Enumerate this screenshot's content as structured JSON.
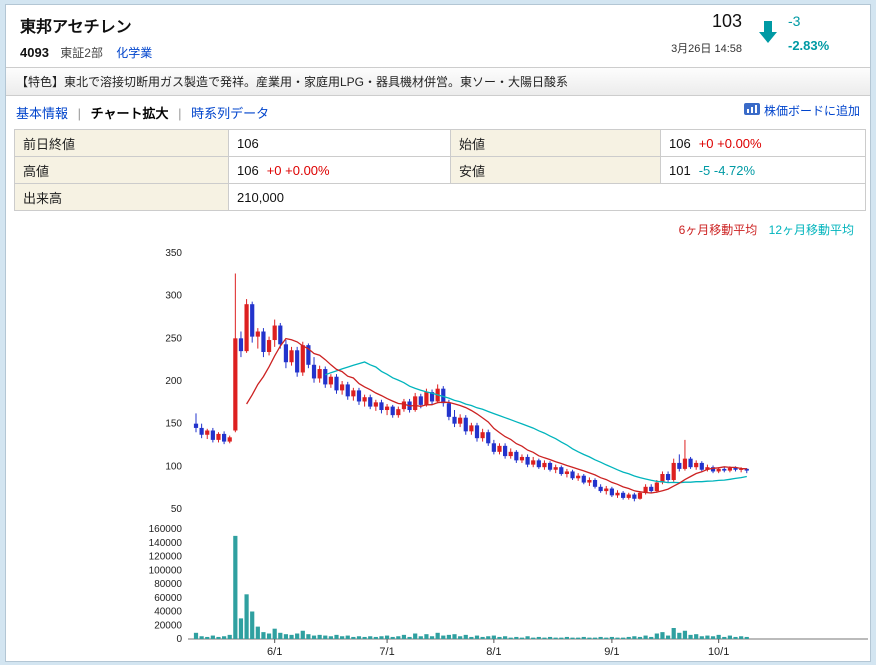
{
  "header": {
    "name": "東邦アセチレン",
    "code": "4093",
    "market": "東証2部",
    "industry": "化学業",
    "price": "103",
    "datetime": "3月26日 14:58",
    "change": "-3",
    "change_pct": "-2.83%"
  },
  "feature_text": "【特色】東北で溶接切断用ガス製造で発祥。産業用・家庭用LPG・器具機材併営。東ソー・大陽日酸系",
  "nav": {
    "basic": "基本情報",
    "chart": "チャート拡大",
    "timeseries": "時系列データ",
    "separator": "|",
    "add_board": "株価ボードに追加"
  },
  "quote": {
    "prev_close_label": "前日終値",
    "prev_close": "106",
    "open_label": "始値",
    "open": "106",
    "open_change": "+0 +0.00%",
    "high_label": "高値",
    "high": "106",
    "high_change": "+0 +0.00%",
    "low_label": "安値",
    "low": "101",
    "low_change": "-5 -4.72%",
    "volume_label": "出来高",
    "volume": "210,000"
  },
  "colors": {
    "up_red": "#dd0000",
    "down_teal": "#009aa4",
    "link_blue": "#0044cc"
  },
  "chart_data": {
    "type": "candlestick",
    "series_format": "[open, high, low, close, volume]",
    "legend": [
      {
        "label": "6ヶ月移動平均",
        "color": "#cc2222"
      },
      {
        "label": "12ヶ月移動平均",
        "color": "#00b4bc"
      }
    ],
    "price_axis": {
      "min": 50,
      "max": 350,
      "ticks": [
        350,
        300,
        250,
        200,
        150,
        100,
        50
      ]
    },
    "volume_axis": {
      "min": 0,
      "max": 160000,
      "ticks": [
        160000,
        140000,
        120000,
        100000,
        80000,
        60000,
        40000,
        20000,
        0
      ]
    },
    "x_ticks": [
      {
        "label": "6/1",
        "index": 14
      },
      {
        "label": "7/1",
        "index": 34
      },
      {
        "label": "8/1",
        "index": 53
      },
      {
        "label": "9/1",
        "index": 74
      },
      {
        "label": "10/1",
        "index": 93
      }
    ],
    "ma_short_window": 10,
    "ma_long_window": 24,
    "colors": {
      "up": "#dd2020",
      "down": "#2233cc",
      "volume": "#2fa0a0"
    },
    "candles": [
      [
        150,
        162,
        140,
        145,
        9000
      ],
      [
        145,
        150,
        133,
        137,
        4000
      ],
      [
        137,
        144,
        132,
        142,
        3000
      ],
      [
        142,
        145,
        128,
        131,
        5000
      ],
      [
        131,
        140,
        128,
        138,
        3000
      ],
      [
        138,
        141,
        126,
        129,
        4000
      ],
      [
        129,
        136,
        127,
        134,
        6000
      ],
      [
        142,
        326,
        140,
        250,
        150000
      ],
      [
        250,
        258,
        228,
        235,
        30000
      ],
      [
        235,
        296,
        233,
        290,
        65000
      ],
      [
        290,
        293,
        245,
        252,
        40000
      ],
      [
        252,
        262,
        238,
        258,
        18000
      ],
      [
        258,
        262,
        228,
        234,
        10000
      ],
      [
        234,
        252,
        230,
        248,
        8000
      ],
      [
        248,
        272,
        240,
        265,
        15000
      ],
      [
        265,
        268,
        238,
        243,
        9000
      ],
      [
        243,
        248,
        215,
        222,
        7000
      ],
      [
        222,
        240,
        218,
        236,
        6000
      ],
      [
        236,
        240,
        205,
        210,
        8000
      ],
      [
        210,
        246,
        206,
        242,
        12000
      ],
      [
        242,
        244,
        215,
        219,
        7000
      ],
      [
        219,
        228,
        198,
        203,
        5000
      ],
      [
        203,
        218,
        198,
        214,
        6000
      ],
      [
        214,
        217,
        192,
        196,
        5000
      ],
      [
        196,
        208,
        192,
        205,
        4000
      ],
      [
        205,
        208,
        185,
        189,
        6000
      ],
      [
        189,
        200,
        184,
        196,
        4000
      ],
      [
        196,
        199,
        178,
        182,
        5000
      ],
      [
        182,
        192,
        177,
        189,
        3000
      ],
      [
        189,
        192,
        172,
        176,
        4000
      ],
      [
        176,
        184,
        170,
        181,
        3000
      ],
      [
        181,
        184,
        167,
        170,
        4000
      ],
      [
        170,
        178,
        165,
        175,
        3000
      ],
      [
        175,
        178,
        162,
        166,
        4000
      ],
      [
        166,
        173,
        160,
        170,
        5000
      ],
      [
        170,
        172,
        157,
        160,
        3000
      ],
      [
        160,
        170,
        157,
        167,
        4000
      ],
      [
        167,
        179,
        164,
        176,
        6000
      ],
      [
        176,
        179,
        163,
        166,
        3000
      ],
      [
        166,
        186,
        164,
        182,
        8000
      ],
      [
        182,
        185,
        168,
        172,
        4000
      ],
      [
        172,
        191,
        170,
        187,
        7000
      ],
      [
        187,
        190,
        172,
        176,
        4000
      ],
      [
        176,
        196,
        174,
        191,
        9000
      ],
      [
        191,
        194,
        170,
        174,
        5000
      ],
      [
        174,
        178,
        154,
        158,
        6000
      ],
      [
        158,
        166,
        146,
        150,
        7000
      ],
      [
        150,
        161,
        146,
        157,
        4000
      ],
      [
        157,
        160,
        137,
        141,
        6000
      ],
      [
        141,
        151,
        137,
        148,
        3000
      ],
      [
        148,
        151,
        129,
        133,
        5000
      ],
      [
        133,
        144,
        129,
        140,
        3000
      ],
      [
        140,
        143,
        124,
        127,
        4000
      ],
      [
        127,
        131,
        114,
        117,
        5000
      ],
      [
        117,
        127,
        114,
        124,
        3000
      ],
      [
        124,
        127,
        109,
        112,
        4000
      ],
      [
        112,
        121,
        109,
        117,
        2000
      ],
      [
        117,
        119,
        104,
        107,
        3000
      ],
      [
        107,
        114,
        104,
        111,
        2000
      ],
      [
        111,
        114,
        99,
        102,
        4000
      ],
      [
        102,
        111,
        99,
        107,
        2000
      ],
      [
        107,
        109,
        97,
        99,
        3000
      ],
      [
        99,
        107,
        96,
        104,
        2000
      ],
      [
        104,
        106,
        94,
        96,
        3000
      ],
      [
        96,
        102,
        92,
        99,
        2000
      ],
      [
        99,
        101,
        89,
        91,
        2000
      ],
      [
        91,
        97,
        87,
        94,
        3000
      ],
      [
        94,
        96,
        84,
        86,
        2000
      ],
      [
        86,
        92,
        83,
        89,
        2000
      ],
      [
        89,
        91,
        79,
        81,
        3000
      ],
      [
        81,
        87,
        77,
        84,
        2000
      ],
      [
        84,
        86,
        74,
        76,
        2000
      ],
      [
        76,
        79,
        69,
        71,
        3000
      ],
      [
        71,
        77,
        67,
        74,
        2000
      ],
      [
        74,
        76,
        64,
        66,
        3000
      ],
      [
        66,
        72,
        63,
        69,
        2000
      ],
      [
        69,
        71,
        61,
        63,
        2000
      ],
      [
        63,
        69,
        61,
        67,
        3000
      ],
      [
        67,
        69,
        59,
        62,
        4000
      ],
      [
        62,
        71,
        61,
        69,
        3000
      ],
      [
        69,
        79,
        67,
        76,
        5000
      ],
      [
        76,
        79,
        69,
        71,
        3000
      ],
      [
        71,
        84,
        69,
        81,
        8000
      ],
      [
        81,
        94,
        79,
        91,
        10000
      ],
      [
        91,
        94,
        81,
        84,
        5000
      ],
      [
        84,
        109,
        82,
        104,
        16000
      ],
      [
        104,
        114,
        94,
        97,
        9000
      ],
      [
        97,
        131,
        95,
        109,
        12000
      ],
      [
        109,
        111,
        97,
        99,
        6000
      ],
      [
        99,
        107,
        96,
        104,
        7000
      ],
      [
        104,
        106,
        94,
        96,
        4000
      ],
      [
        96,
        102,
        94,
        99,
        5000
      ],
      [
        99,
        101,
        92,
        94,
        4000
      ],
      [
        94,
        99,
        92,
        97,
        6000
      ],
      [
        97,
        99,
        93,
        95,
        3000
      ],
      [
        95,
        100,
        93,
        98,
        5000
      ],
      [
        98,
        100,
        94,
        96,
        3000
      ],
      [
        96,
        99,
        93,
        97,
        4000
      ],
      [
        97,
        98,
        92,
        95,
        3000
      ]
    ]
  }
}
